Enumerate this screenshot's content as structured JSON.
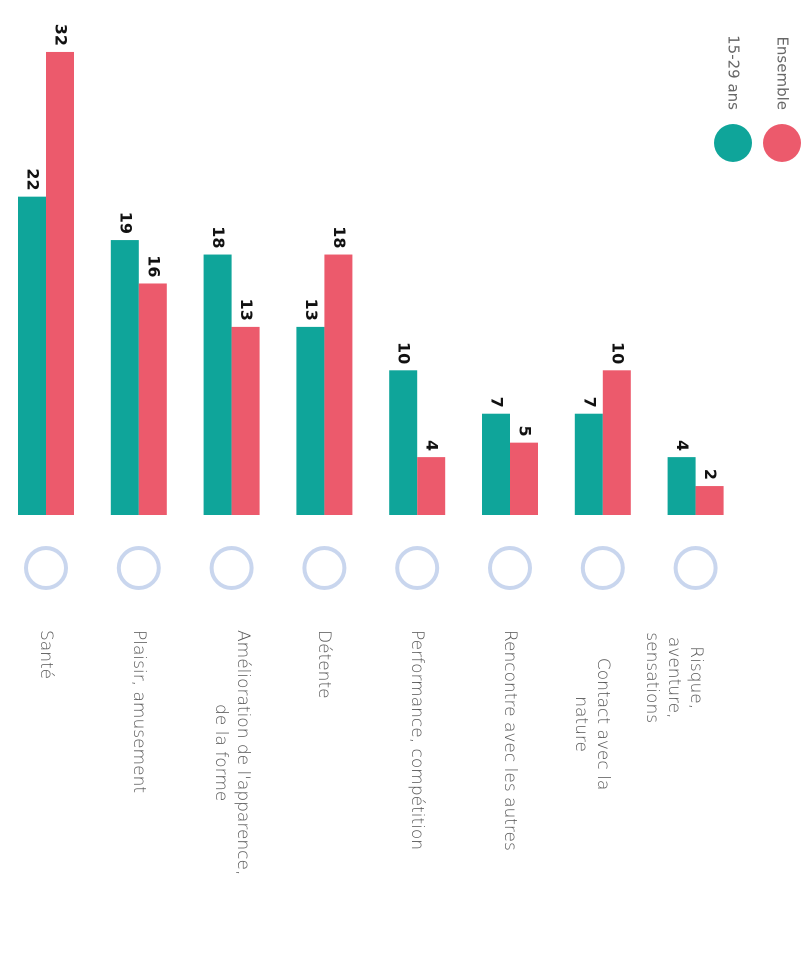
{
  "chart_data": {
    "type": "bar",
    "categories": [
      "Santé",
      "Plaisir, amusement",
      "Amélioration de l'apparence,\nde la forme",
      "Détente",
      "Performance, compétition",
      "Rencontre avec les autres",
      "Contact avec la nature",
      "Risque, aventure, sensations"
    ],
    "series": [
      {
        "name": "15-29 ans",
        "color": "#0fa59a",
        "values": [
          22,
          19,
          18,
          13,
          10,
          7,
          7,
          4
        ]
      },
      {
        "name": "Ensemble",
        "color": "#ec5a6c",
        "values": [
          32,
          16,
          13,
          18,
          4,
          5,
          10,
          2
        ]
      }
    ]
  }
}
